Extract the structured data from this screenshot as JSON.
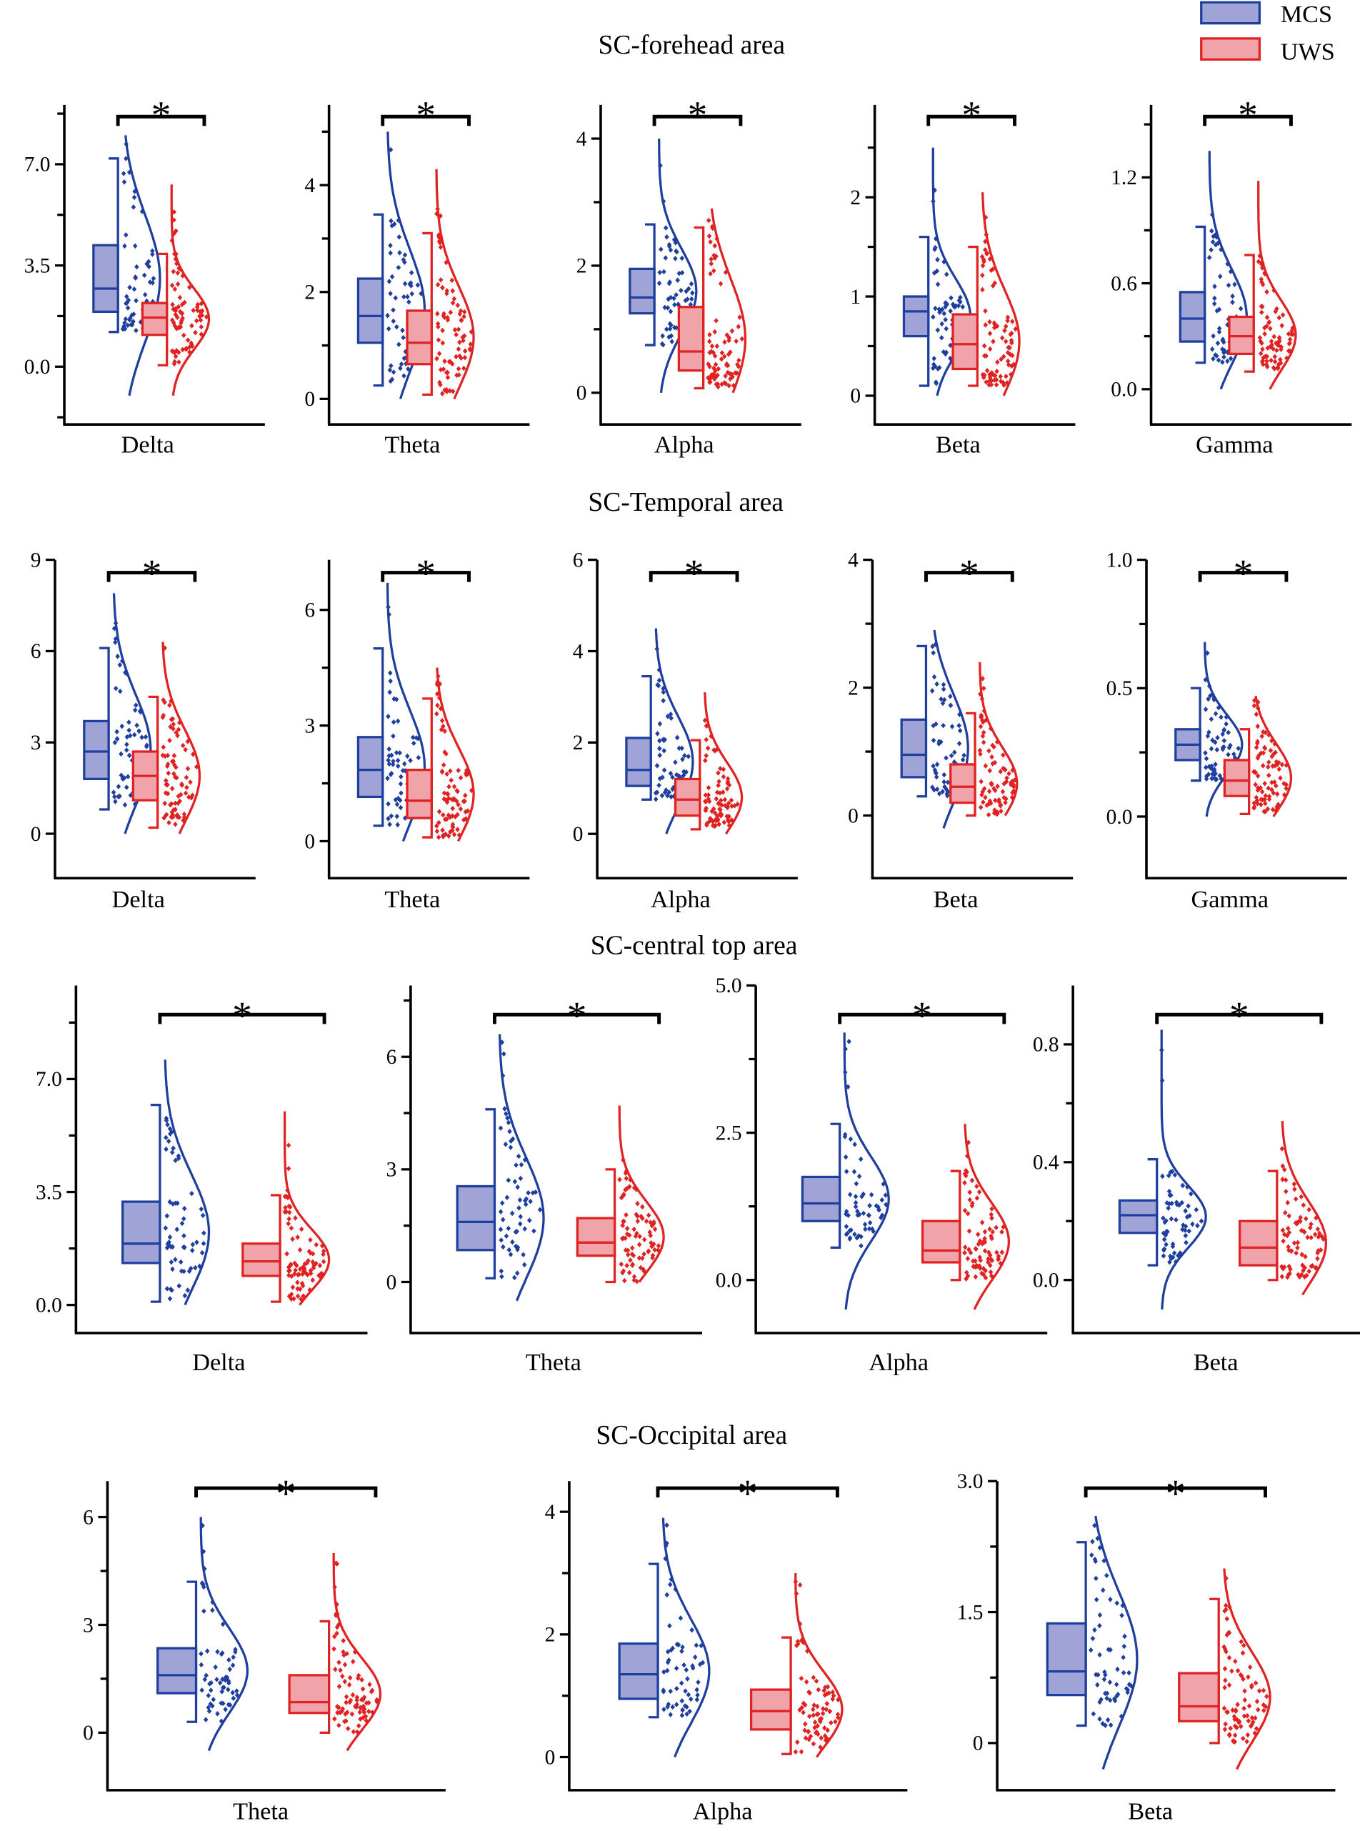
{
  "legend": [
    {
      "label": "MCS",
      "fill": "#a0a3d6",
      "stroke": "#1f3f9f"
    },
    {
      "label": "UWS",
      "fill": "#f0a3a8",
      "stroke": "#e02222"
    }
  ],
  "sections": [
    "SC-forehead area",
    "SC-Temporal area",
    "SC-central top area",
    "SC-Occipital area"
  ],
  "significance_marker": "*",
  "chart_data": [
    {
      "type": "box+violin+scatter",
      "section": "SC-forehead area",
      "xlabel": "Delta",
      "ylim": [
        -2,
        9.05
      ],
      "ticks": [
        0,
        3.5,
        7
      ],
      "tick_labels": [
        "0.0",
        "3.5",
        "7.0"
      ],
      "minor_ticks": [
        -1.75,
        1.75,
        5.25,
        8.75
      ],
      "MCS": {
        "whisker_low": 1.2,
        "q1": 1.9,
        "median": 2.7,
        "q3": 4.2,
        "whisker_high": 7.2,
        "range": [
          -1,
          8
        ]
      },
      "UWS": {
        "whisker_low": 0.05,
        "q1": 1.1,
        "median": 1.7,
        "q3": 2.2,
        "whisker_high": 3.9,
        "range": [
          -1,
          6.3
        ]
      },
      "significant": true
    },
    {
      "type": "box+violin+scatter",
      "section": "SC-forehead area",
      "xlabel": "Theta",
      "ylim": [
        -0.48,
        5.5
      ],
      "ticks": [
        0,
        2,
        4
      ],
      "tick_labels": [
        "0",
        "2",
        "4"
      ],
      "minor_ticks": [
        1,
        3,
        5
      ],
      "MCS": {
        "whisker_low": 0.25,
        "q1": 1.05,
        "median": 1.55,
        "q3": 2.25,
        "whisker_high": 3.45,
        "range": [
          0,
          5
        ]
      },
      "UWS": {
        "whisker_low": 0.08,
        "q1": 0.65,
        "median": 1.05,
        "q3": 1.65,
        "whisker_high": 3.1,
        "range": [
          0,
          4.3
        ]
      },
      "significant": true
    },
    {
      "type": "box+violin+scatter",
      "section": "SC-forehead area",
      "xlabel": "Alpha",
      "ylim": [
        -0.5,
        4.53
      ],
      "ticks": [
        0,
        2,
        4
      ],
      "tick_labels": [
        "0",
        "2",
        "4"
      ],
      "minor_ticks": [
        1,
        3
      ],
      "MCS": {
        "whisker_low": 0.75,
        "q1": 1.25,
        "median": 1.5,
        "q3": 1.95,
        "whisker_high": 2.65,
        "range": [
          0,
          4
        ]
      },
      "UWS": {
        "whisker_low": 0.07,
        "q1": 0.35,
        "median": 0.65,
        "q3": 1.35,
        "whisker_high": 2.6,
        "range": [
          0,
          2.9
        ]
      },
      "significant": true
    },
    {
      "type": "box+violin+scatter",
      "section": "SC-forehead area",
      "xlabel": "Beta",
      "ylim": [
        -0.29,
        2.93
      ],
      "ticks": [
        0,
        1,
        2
      ],
      "tick_labels": [
        "0",
        "1",
        "2"
      ],
      "minor_ticks": [
        0.5,
        1.5,
        2.5
      ],
      "MCS": {
        "whisker_low": 0.1,
        "q1": 0.6,
        "median": 0.85,
        "q3": 1.0,
        "whisker_high": 1.6,
        "range": [
          0,
          2.5
        ]
      },
      "UWS": {
        "whisker_low": 0.1,
        "q1": 0.27,
        "median": 0.52,
        "q3": 0.82,
        "whisker_high": 1.5,
        "range": [
          0,
          2.05
        ]
      },
      "significant": true
    },
    {
      "type": "box+violin+scatter",
      "section": "SC-forehead area",
      "xlabel": "Gamma",
      "ylim": [
        -0.2,
        1.61
      ],
      "ticks": [
        0,
        0.6,
        1.2
      ],
      "tick_labels": [
        "0.0",
        "0.6",
        "1.2"
      ],
      "minor_ticks": [
        0.3,
        0.9,
        1.5
      ],
      "MCS": {
        "whisker_low": 0.15,
        "q1": 0.27,
        "median": 0.4,
        "q3": 0.55,
        "whisker_high": 0.92,
        "range": [
          0,
          1.35
        ]
      },
      "UWS": {
        "whisker_low": 0.1,
        "q1": 0.2,
        "median": 0.3,
        "q3": 0.41,
        "whisker_high": 0.76,
        "range": [
          0,
          1.18
        ]
      },
      "significant": true
    },
    {
      "type": "box+violin+scatter",
      "section": "SC-Temporal area",
      "xlabel": "Delta",
      "ylim": [
        -1.46,
        9
      ],
      "ticks": [
        0,
        3,
        6,
        9
      ],
      "tick_labels": [
        "0",
        "3",
        "6",
        "9"
      ],
      "minor_ticks": [],
      "MCS": {
        "whisker_low": 0.8,
        "q1": 1.8,
        "median": 2.7,
        "q3": 3.7,
        "whisker_high": 6.1,
        "range": [
          0,
          7.9
        ]
      },
      "UWS": {
        "whisker_low": 0.2,
        "q1": 1.1,
        "median": 1.9,
        "q3": 2.7,
        "whisker_high": 4.5,
        "range": [
          0,
          6.3
        ]
      },
      "significant": true
    },
    {
      "type": "box+violin+scatter",
      "section": "SC-Temporal area",
      "xlabel": "Theta",
      "ylim": [
        -0.96,
        7.3
      ],
      "ticks": [
        0,
        3,
        6
      ],
      "tick_labels": [
        "0",
        "3",
        "6"
      ],
      "minor_ticks": [
        1.5,
        4.5
      ],
      "MCS": {
        "whisker_low": 0.4,
        "q1": 1.15,
        "median": 1.85,
        "q3": 2.7,
        "whisker_high": 5,
        "range": [
          0,
          6.7
        ]
      },
      "UWS": {
        "whisker_low": 0.1,
        "q1": 0.6,
        "median": 1.05,
        "q3": 1.85,
        "whisker_high": 3.7,
        "range": [
          0,
          4.5
        ]
      },
      "significant": true
    },
    {
      "type": "box+violin+scatter",
      "section": "SC-Temporal area",
      "xlabel": "Alpha",
      "ylim": [
        -0.97,
        6
      ],
      "ticks": [
        0,
        2,
        4,
        6
      ],
      "tick_labels": [
        "0",
        "2",
        "4",
        "6"
      ],
      "minor_ticks": [],
      "MCS": {
        "whisker_low": 0.75,
        "q1": 1.05,
        "median": 1.4,
        "q3": 2.1,
        "whisker_high": 3.45,
        "range": [
          0,
          4.5
        ]
      },
      "UWS": {
        "whisker_low": 0.1,
        "q1": 0.4,
        "median": 0.75,
        "q3": 1.2,
        "whisker_high": 2.05,
        "range": [
          0,
          3.1
        ]
      },
      "significant": true
    },
    {
      "type": "box+violin+scatter",
      "section": "SC-Temporal area",
      "xlabel": "Beta",
      "ylim": [
        -0.98,
        4
      ],
      "ticks": [
        0,
        2,
        4
      ],
      "tick_labels": [
        "0",
        "2",
        "4"
      ],
      "minor_ticks": [
        1,
        3
      ],
      "MCS": {
        "whisker_low": 0.3,
        "q1": 0.6,
        "median": 0.95,
        "q3": 1.5,
        "whisker_high": 2.65,
        "range": [
          -0.2,
          2.9
        ]
      },
      "UWS": {
        "whisker_low": 0,
        "q1": 0.2,
        "median": 0.45,
        "q3": 0.8,
        "whisker_high": 1.6,
        "range": [
          0,
          2.4
        ]
      },
      "significant": true
    },
    {
      "type": "box+violin+scatter",
      "section": "SC-Temporal area",
      "xlabel": "Gamma",
      "ylim": [
        -0.24,
        1.0
      ],
      "ticks": [
        0,
        0.5,
        1.0
      ],
      "tick_labels": [
        "0.0",
        "0.5",
        "1.0"
      ],
      "minor_ticks": [
        0.25,
        0.75
      ],
      "MCS": {
        "whisker_low": 0.14,
        "q1": 0.22,
        "median": 0.28,
        "q3": 0.34,
        "whisker_high": 0.5,
        "range": [
          0,
          0.68
        ]
      },
      "UWS": {
        "whisker_low": 0.01,
        "q1": 0.08,
        "median": 0.14,
        "q3": 0.22,
        "whisker_high": 0.34,
        "range": [
          0,
          0.47
        ]
      },
      "significant": true
    },
    {
      "type": "box+violin+scatter",
      "section": "SC-central top area",
      "xlabel": "Delta",
      "ylim": [
        -0.87,
        9.9
      ],
      "ticks": [
        0,
        3.5,
        7
      ],
      "tick_labels": [
        "0.0",
        "3.5",
        "7.0"
      ],
      "minor_ticks": [
        1.75,
        5.25,
        8.75
      ],
      "MCS": {
        "whisker_low": 0.1,
        "q1": 1.3,
        "median": 1.9,
        "q3": 3.2,
        "whisker_high": 6.2,
        "range": [
          0,
          7.6
        ]
      },
      "UWS": {
        "whisker_low": 0.1,
        "q1": 0.9,
        "median": 1.35,
        "q3": 1.9,
        "whisker_high": 3.4,
        "range": [
          0,
          6
        ]
      },
      "significant": true
    },
    {
      "type": "box+violin+scatter",
      "section": "SC-central top area",
      "xlabel": "Theta",
      "ylim": [
        -1.36,
        7.9
      ],
      "ticks": [
        0,
        3,
        6
      ],
      "tick_labels": [
        "0",
        "3",
        "6"
      ],
      "minor_ticks": [
        1.5,
        4.5,
        7.5
      ],
      "MCS": {
        "whisker_low": 0.1,
        "q1": 0.85,
        "median": 1.6,
        "q3": 2.55,
        "whisker_high": 4.6,
        "range": [
          -0.5,
          6.6
        ]
      },
      "UWS": {
        "whisker_low": 0,
        "q1": 0.7,
        "median": 1.05,
        "q3": 1.7,
        "whisker_high": 3,
        "range": [
          0,
          4.7
        ]
      },
      "significant": true
    },
    {
      "type": "box+violin+scatter",
      "section": "SC-central top area",
      "xlabel": "Alpha",
      "ylim": [
        -0.9,
        5
      ],
      "ticks": [
        0,
        2.5,
        5
      ],
      "tick_labels": [
        "0.0",
        "2.5",
        "5.0"
      ],
      "minor_ticks": [
        1.25,
        3.75
      ],
      "MCS": {
        "whisker_low": 0.55,
        "q1": 1.0,
        "median": 1.3,
        "q3": 1.75,
        "whisker_high": 2.65,
        "range": [
          -0.5,
          4.2
        ]
      },
      "UWS": {
        "whisker_low": 0,
        "q1": 0.3,
        "median": 0.5,
        "q3": 1.0,
        "whisker_high": 1.85,
        "range": [
          -0.5,
          2.65
        ]
      },
      "significant": true
    },
    {
      "type": "box+violin+scatter",
      "section": "SC-central top area",
      "xlabel": "Beta",
      "ylim": [
        -0.18,
        1.0
      ],
      "ticks": [
        0,
        0.4,
        0.8
      ],
      "tick_labels": [
        "0.0",
        "0.4",
        "0.8"
      ],
      "minor_ticks": [
        0.2,
        0.6
      ],
      "MCS": {
        "whisker_low": 0.05,
        "q1": 0.16,
        "median": 0.22,
        "q3": 0.27,
        "whisker_high": 0.41,
        "range": [
          -0.1,
          0.85
        ]
      },
      "UWS": {
        "whisker_low": 0,
        "q1": 0.05,
        "median": 0.11,
        "q3": 0.2,
        "whisker_high": 0.37,
        "range": [
          -0.05,
          0.54
        ]
      },
      "significant": true
    },
    {
      "type": "box+violin+scatter",
      "section": "SC-Occipital area",
      "xlabel": "Theta",
      "ylim": [
        -1.6,
        7
      ],
      "ticks": [
        0,
        3,
        6
      ],
      "tick_labels": [
        "0",
        "3",
        "6"
      ],
      "minor_ticks": [
        1.5,
        4.5
      ],
      "MCS": {
        "whisker_low": 0.3,
        "q1": 1.1,
        "median": 1.6,
        "q3": 2.35,
        "whisker_high": 4.2,
        "range": [
          -0.5,
          6
        ]
      },
      "UWS": {
        "whisker_low": 0,
        "q1": 0.55,
        "median": 0.85,
        "q3": 1.6,
        "whisker_high": 3.1,
        "range": [
          -0.5,
          5
        ]
      },
      "significant": true
    },
    {
      "type": "box+violin+scatter",
      "section": "SC-Occipital area",
      "xlabel": "Alpha",
      "ylim": [
        -0.54,
        4.5
      ],
      "ticks": [
        0,
        2,
        4
      ],
      "tick_labels": [
        "0",
        "2",
        "4"
      ],
      "minor_ticks": [
        1,
        3
      ],
      "MCS": {
        "whisker_low": 0.65,
        "q1": 0.95,
        "median": 1.35,
        "q3": 1.85,
        "whisker_high": 3.15,
        "range": [
          0,
          3.9
        ]
      },
      "UWS": {
        "whisker_low": 0.05,
        "q1": 0.45,
        "median": 0.75,
        "q3": 1.1,
        "whisker_high": 1.95,
        "range": [
          0,
          3
        ]
      },
      "significant": true
    },
    {
      "type": "box+violin+scatter",
      "section": "SC-Occipital area",
      "xlabel": "Beta",
      "ylim": [
        -0.54,
        3.0
      ],
      "ticks": [
        0,
        1.5,
        3.0
      ],
      "tick_labels": [
        "0",
        "1.5",
        "3.0"
      ],
      "minor_ticks": [
        0.75,
        2.25
      ],
      "MCS": {
        "whisker_low": 0.2,
        "q1": 0.55,
        "median": 0.82,
        "q3": 1.37,
        "whisker_high": 2.3,
        "range": [
          -0.3,
          2.6
        ]
      },
      "UWS": {
        "whisker_low": 0,
        "q1": 0.25,
        "median": 0.42,
        "q3": 0.8,
        "whisker_high": 1.65,
        "range": [
          -0.3,
          2
        ]
      },
      "significant": true
    }
  ]
}
